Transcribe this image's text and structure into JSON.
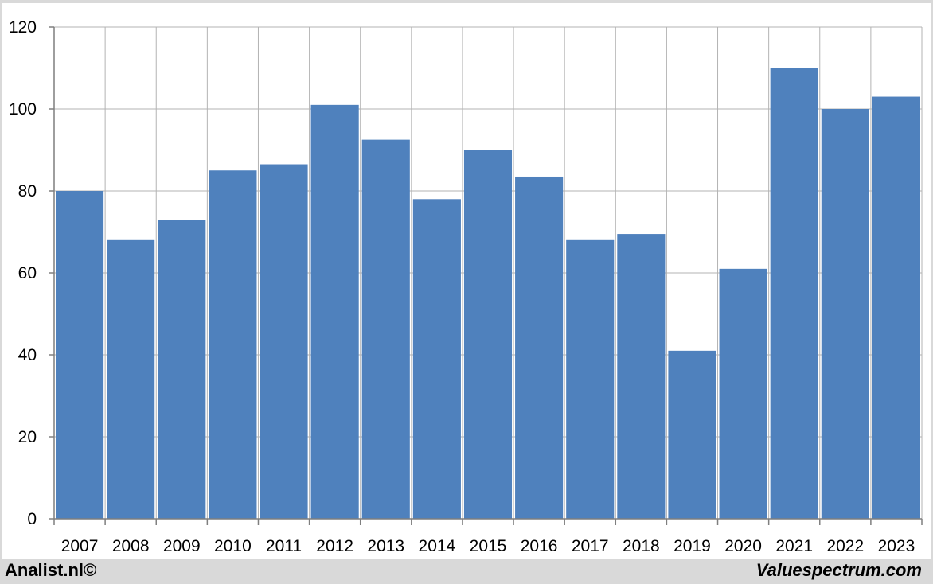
{
  "footer": {
    "left_text": "Analist.nl©",
    "right_text": "Valuespectrum.com"
  },
  "colors": {
    "bar": "#4f81bd",
    "grid": "#b3b3b3",
    "axis": "#7f7f7f",
    "background": "#ffffff",
    "frame": "#d9d9d9"
  },
  "chart_data": {
    "type": "bar",
    "categories": [
      "2007",
      "2008",
      "2009",
      "2010",
      "2011",
      "2012",
      "2013",
      "2014",
      "2015",
      "2016",
      "2017",
      "2018",
      "2019",
      "2020",
      "2021",
      "2022",
      "2023"
    ],
    "values": [
      80,
      68,
      73,
      85,
      86.5,
      101,
      92.5,
      78,
      90,
      83.5,
      68,
      69.5,
      41,
      61,
      110,
      100,
      103
    ],
    "yticks": [
      0,
      20,
      40,
      60,
      80,
      100,
      120
    ],
    "ylim": [
      0,
      120
    ],
    "grid": true,
    "legend": "none"
  }
}
